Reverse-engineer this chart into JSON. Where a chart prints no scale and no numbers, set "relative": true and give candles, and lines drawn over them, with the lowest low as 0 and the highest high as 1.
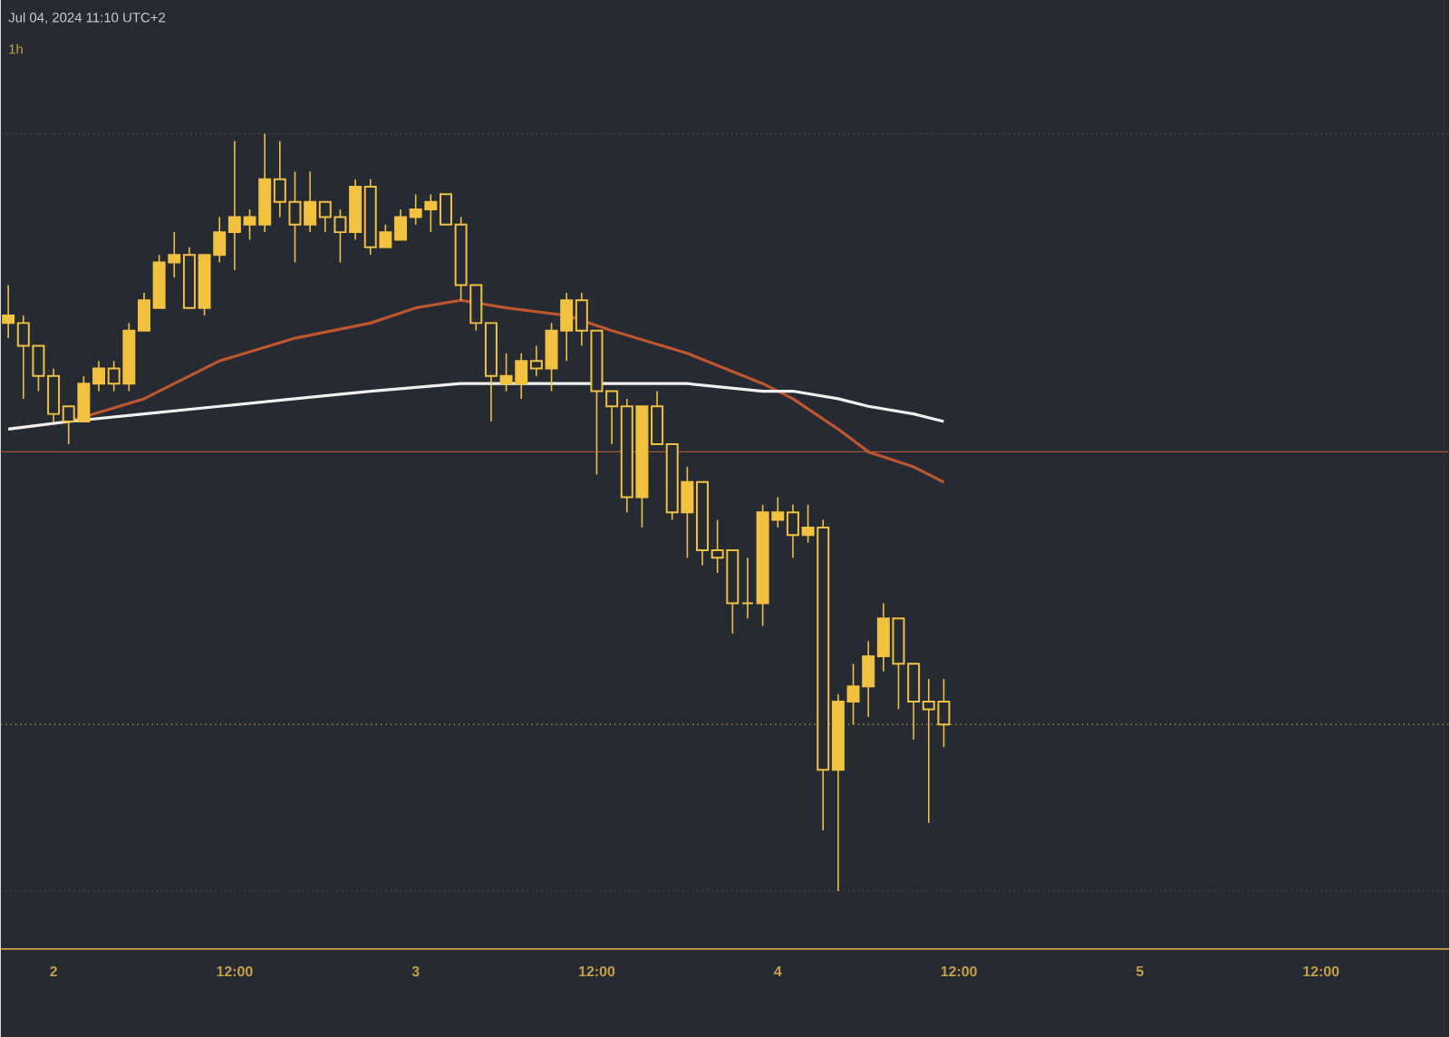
{
  "chart_data": {
    "type": "candlestick",
    "relative": true,
    "color": "#f2c13e",
    "annotations": [
      "Jul 04, 2024 11:10 UTC+2",
      "1h"
    ],
    "x": [
      "2024-07-01T21:00",
      "2024-07-01T22:00",
      "2024-07-01T23:00",
      "2024-07-02T00:00",
      "2024-07-02T01:00",
      "2024-07-02T02:00",
      "2024-07-02T03:00",
      "2024-07-02T04:00",
      "2024-07-02T05:00",
      "2024-07-02T06:00",
      "2024-07-02T07:00",
      "2024-07-02T08:00",
      "2024-07-02T09:00",
      "2024-07-02T10:00",
      "2024-07-02T11:00",
      "2024-07-02T12:00",
      "2024-07-02T13:00",
      "2024-07-02T14:00",
      "2024-07-02T15:00",
      "2024-07-02T16:00",
      "2024-07-02T17:00",
      "2024-07-02T18:00",
      "2024-07-02T19:00",
      "2024-07-02T20:00",
      "2024-07-02T21:00",
      "2024-07-02T22:00",
      "2024-07-02T23:00",
      "2024-07-03T00:00",
      "2024-07-03T01:00",
      "2024-07-03T02:00",
      "2024-07-03T03:00",
      "2024-07-03T04:00",
      "2024-07-03T05:00",
      "2024-07-03T06:00",
      "2024-07-03T07:00",
      "2024-07-03T08:00",
      "2024-07-03T09:00",
      "2024-07-03T10:00",
      "2024-07-03T11:00",
      "2024-07-03T12:00",
      "2024-07-03T13:00",
      "2024-07-03T14:00",
      "2024-07-03T15:00",
      "2024-07-03T16:00",
      "2024-07-03T17:00",
      "2024-07-03T18:00",
      "2024-07-03T19:00",
      "2024-07-03T20:00",
      "2024-07-03T21:00",
      "2024-07-03T22:00",
      "2024-07-03T23:00",
      "2024-07-04T00:00",
      "2024-07-04T01:00",
      "2024-07-04T02:00",
      "2024-07-04T03:00",
      "2024-07-04T04:00",
      "2024-07-04T05:00",
      "2024-07-04T06:00",
      "2024-07-04T07:00",
      "2024-07-04T08:00",
      "2024-07-04T09:00",
      "2024-07-04T10:00",
      "2024-07-04T11:00"
    ],
    "ohlc": [
      [
        0.75,
        0.8,
        0.73,
        0.76
      ],
      [
        0.75,
        0.76,
        0.65,
        0.72
      ],
      [
        0.72,
        0.72,
        0.66,
        0.68
      ],
      [
        0.68,
        0.69,
        0.62,
        0.63
      ],
      [
        0.64,
        0.64,
        0.59,
        0.62
      ],
      [
        0.62,
        0.68,
        0.62,
        0.67
      ],
      [
        0.67,
        0.7,
        0.66,
        0.69
      ],
      [
        0.69,
        0.7,
        0.66,
        0.67
      ],
      [
        0.67,
        0.75,
        0.66,
        0.74
      ],
      [
        0.74,
        0.79,
        0.74,
        0.78
      ],
      [
        0.77,
        0.84,
        0.77,
        0.83
      ],
      [
        0.83,
        0.87,
        0.81,
        0.84
      ],
      [
        0.84,
        0.85,
        0.77,
        0.77
      ],
      [
        0.77,
        0.84,
        0.76,
        0.84
      ],
      [
        0.84,
        0.89,
        0.83,
        0.87
      ],
      [
        0.87,
        0.99,
        0.82,
        0.89
      ],
      [
        0.88,
        0.9,
        0.86,
        0.89
      ],
      [
        0.88,
        1.0,
        0.87,
        0.94
      ],
      [
        0.94,
        0.99,
        0.89,
        0.91
      ],
      [
        0.91,
        0.95,
        0.83,
        0.88
      ],
      [
        0.88,
        0.95,
        0.87,
        0.91
      ],
      [
        0.91,
        0.91,
        0.87,
        0.89
      ],
      [
        0.89,
        0.9,
        0.83,
        0.87
      ],
      [
        0.87,
        0.94,
        0.86,
        0.93
      ],
      [
        0.93,
        0.94,
        0.84,
        0.85
      ],
      [
        0.85,
        0.88,
        0.85,
        0.87
      ],
      [
        0.86,
        0.9,
        0.86,
        0.89
      ],
      [
        0.89,
        0.92,
        0.88,
        0.9
      ],
      [
        0.9,
        0.92,
        0.87,
        0.91
      ],
      [
        0.92,
        0.92,
        0.88,
        0.88
      ],
      [
        0.88,
        0.89,
        0.78,
        0.8
      ],
      [
        0.8,
        0.8,
        0.74,
        0.75
      ],
      [
        0.75,
        0.75,
        0.62,
        0.68
      ],
      [
        0.67,
        0.71,
        0.66,
        0.68
      ],
      [
        0.67,
        0.71,
        0.65,
        0.7
      ],
      [
        0.7,
        0.72,
        0.68,
        0.69
      ],
      [
        0.69,
        0.75,
        0.66,
        0.74
      ],
      [
        0.74,
        0.79,
        0.7,
        0.78
      ],
      [
        0.78,
        0.79,
        0.72,
        0.74
      ],
      [
        0.74,
        0.74,
        0.55,
        0.66
      ],
      [
        0.66,
        0.66,
        0.59,
        0.64
      ],
      [
        0.64,
        0.65,
        0.5,
        0.52
      ],
      [
        0.52,
        0.64,
        0.48,
        0.64
      ],
      [
        0.64,
        0.66,
        0.59,
        0.59
      ],
      [
        0.59,
        0.59,
        0.49,
        0.5
      ],
      [
        0.5,
        0.56,
        0.44,
        0.54
      ],
      [
        0.54,
        0.54,
        0.43,
        0.45
      ],
      [
        0.45,
        0.49,
        0.42,
        0.44
      ],
      [
        0.45,
        0.45,
        0.34,
        0.38
      ],
      [
        0.38,
        0.44,
        0.36,
        0.38
      ],
      [
        0.38,
        0.51,
        0.35,
        0.5
      ],
      [
        0.49,
        0.52,
        0.48,
        0.5
      ],
      [
        0.5,
        0.51,
        0.44,
        0.47
      ],
      [
        0.47,
        0.51,
        0.46,
        0.48
      ],
      [
        0.48,
        0.49,
        0.08,
        0.16
      ],
      [
        0.16,
        0.26,
        0.0,
        0.25
      ],
      [
        0.25,
        0.3,
        0.22,
        0.27
      ],
      [
        0.27,
        0.33,
        0.23,
        0.31
      ],
      [
        0.31,
        0.38,
        0.29,
        0.36
      ],
      [
        0.36,
        0.36,
        0.24,
        0.3
      ],
      [
        0.3,
        0.3,
        0.2,
        0.25
      ],
      [
        0.25,
        0.28,
        0.09,
        0.24
      ],
      [
        0.25,
        0.28,
        0.19,
        0.22
      ]
    ],
    "series": [
      {
        "type": "line",
        "color": "#c0562c",
        "x": [
          "2024-07-01T21:00",
          "2024-07-02T01:00",
          "2024-07-02T06:00",
          "2024-07-02T11:00",
          "2024-07-02T16:00",
          "2024-07-02T21:00",
          "2024-07-03T00:00",
          "2024-07-03T03:00",
          "2024-07-03T06:00",
          "2024-07-03T10:00",
          "2024-07-03T13:00",
          "2024-07-03T18:00",
          "2024-07-03T23:00",
          "2024-07-04T01:00",
          "2024-07-04T04:00",
          "2024-07-04T06:00",
          "2024-07-04T09:00",
          "2024-07-04T11:00"
        ],
        "values": [
          0.61,
          0.62,
          0.65,
          0.7,
          0.73,
          0.75,
          0.77,
          0.78,
          0.77,
          0.76,
          0.74,
          0.71,
          0.67,
          0.65,
          0.61,
          0.58,
          0.56,
          0.54
        ]
      },
      {
        "type": "line",
        "color": "#f0f0f0",
        "x": [
          "2024-07-01T21:00",
          "2024-07-02T01:00",
          "2024-07-02T06:00",
          "2024-07-02T11:00",
          "2024-07-02T16:00",
          "2024-07-02T21:00",
          "2024-07-03T03:00",
          "2024-07-03T07:00",
          "2024-07-03T11:00",
          "2024-07-03T13:00",
          "2024-07-03T18:00",
          "2024-07-03T23:00",
          "2024-07-04T01:00",
          "2024-07-04T04:00",
          "2024-07-04T06:00",
          "2024-07-04T09:00",
          "2024-07-04T11:00"
        ],
        "values": [
          0.61,
          0.62,
          0.63,
          0.64,
          0.65,
          0.66,
          0.67,
          0.67,
          0.67,
          0.67,
          0.67,
          0.66,
          0.66,
          0.65,
          0.64,
          0.63,
          0.62
        ]
      }
    ],
    "ref_lines": [
      {
        "axis": "y",
        "value": 1.0,
        "color": "#4a4f5a",
        "line_style": "dotted"
      },
      {
        "axis": "y",
        "value": 0.58,
        "color": "#b5573b",
        "line_style": "solid"
      },
      {
        "axis": "y",
        "value": 0.22,
        "color": "#c8a040",
        "line_style": "dotted"
      },
      {
        "axis": "y",
        "value": 0.0,
        "color": "#4a4f5a",
        "line_style": "dotted"
      }
    ],
    "xlim": [
      "2024-07-01T20:30",
      "2024-07-05T20:30"
    ],
    "xticks": [
      {
        "value": "2024-07-02",
        "label": "2"
      },
      {
        "value": "2024-07-02T12:00",
        "label": "12:00"
      },
      {
        "value": "2024-07-03",
        "label": "3"
      },
      {
        "value": "2024-07-03T12:00",
        "label": "12:00"
      },
      {
        "value": "2024-07-04",
        "label": "4"
      },
      {
        "value": "2024-07-04T12:00",
        "label": "12:00"
      },
      {
        "value": "2024-07-05",
        "label": "5"
      },
      {
        "value": "2024-07-05T12:00",
        "label": "12:00"
      }
    ]
  }
}
